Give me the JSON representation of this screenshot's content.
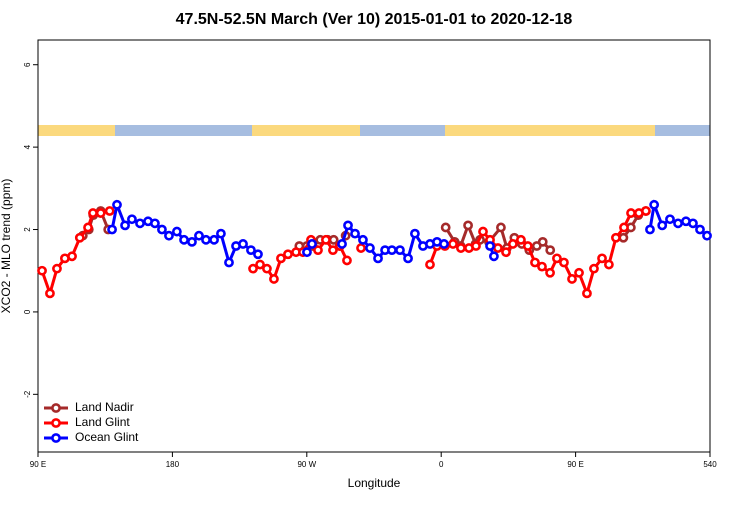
{
  "chart_data": {
    "type": "line",
    "title": "47.5N-52.5N March (Ver 10)   2015-01-01 to 2020-12-18",
    "x_label": "Longitude",
    "y_label": "XCO2 - MLO trend (ppm)",
    "xlim": [
      90,
      540
    ],
    "xticks": [
      {
        "value": 90,
        "label": "90 E"
      },
      180,
      {
        "value": 270,
        "label": "90 W"
      },
      {
        "value": 360,
        "label": "0"
      },
      {
        "value": 450,
        "label": "90 E"
      },
      540
    ],
    "ylim": [
      -3.4,
      6.6
    ],
    "yticks": [
      -2,
      0,
      2,
      4,
      6
    ],
    "legend": "bottom-left",
    "series": [
      {
        "name": "Land Nadir",
        "color": "#a52a2a",
        "x": [
          120,
          124,
          127,
          132,
          137,
          null,
          265,
          270,
          274,
          279,
          284,
          288,
          292,
          296,
          null,
          363,
          369,
          373,
          378,
          383,
          386,
          392,
          400,
          404,
          409,
          414,
          419,
          424,
          428,
          433,
          null,
          482,
          487,
          492,
          497
        ],
        "values": [
          1.85,
          2.0,
          2.35,
          2.45,
          2.0,
          null,
          1.6,
          1.6,
          1.6,
          1.75,
          1.75,
          1.75,
          1.6,
          1.85,
          null,
          2.05,
          1.7,
          1.6,
          2.1,
          1.65,
          1.75,
          1.7,
          2.05,
          1.55,
          1.8,
          1.65,
          1.5,
          1.6,
          1.7,
          1.5,
          null,
          1.8,
          2.05,
          2.35,
          2.45
        ]
      },
      {
        "name": "Land Glint",
        "color": "#ff0000",
        "x": [
          92.7,
          98,
          102.7,
          108,
          112.8,
          118,
          123.5,
          126.8,
          132,
          138,
          null,
          234,
          238.7,
          243.3,
          248,
          252.7,
          257.4,
          262.8,
          267.4,
          272.8,
          277.5,
          282.8,
          287.5,
          292.2,
          296.9,
          null,
          306.3,
          null,
          352.5,
          357.2,
          362.5,
          367.9,
          373.2,
          378.6,
          383.3,
          388,
          392.7,
          398,
          403.4,
          408,
          413.4,
          418,
          422.8,
          427.5,
          432.9,
          437.5,
          442.2,
          447.6,
          452.3,
          457.6,
          462.3,
          467.7,
          472.3,
          477,
          482.4,
          487.1,
          492.4,
          497.1
        ],
        "values": [
          1.0,
          0.45,
          1.05,
          1.3,
          1.35,
          1.8,
          2.05,
          2.4,
          2.4,
          2.45,
          null,
          1.05,
          1.15,
          1.05,
          0.8,
          1.3,
          1.4,
          1.45,
          1.45,
          1.75,
          1.5,
          1.75,
          1.5,
          1.6,
          1.25,
          null,
          1.55,
          null,
          1.15,
          1.6,
          1.6,
          1.65,
          1.55,
          1.55,
          1.6,
          1.95,
          1.75,
          1.55,
          1.45,
          1.65,
          1.75,
          1.6,
          1.2,
          1.1,
          0.95,
          1.3,
          1.2,
          0.8,
          0.95,
          0.45,
          1.05,
          1.3,
          1.15,
          1.8,
          2.05,
          2.4,
          2.4,
          2.45
        ]
      },
      {
        "name": "Ocean Glint",
        "color": "#0000ff",
        "x": [
          139.6,
          142.9,
          148.3,
          152.9,
          158.3,
          163.7,
          168.3,
          173,
          177.7,
          183,
          187.8,
          193.1,
          197.8,
          202.5,
          207.9,
          212.5,
          217.9,
          222.6,
          227.3,
          232.6,
          237.3,
          null,
          270.1,
          273.5,
          null,
          293.6,
          297.6,
          302.3,
          307.6,
          312.3,
          317.7,
          322.4,
          327,
          332.4,
          337.8,
          342.4,
          347.8,
          352.5,
          357.2,
          361.9,
          null,
          392.7,
          395.3,
          null,
          499.8,
          502.6,
          508,
          513.2,
          518.6,
          523.9,
          528.6,
          533.3,
          538
        ],
        "values": [
          2.0,
          2.6,
          2.1,
          2.25,
          2.15,
          2.2,
          2.15,
          2.0,
          1.85,
          1.95,
          1.75,
          1.7,
          1.85,
          1.75,
          1.75,
          1.9,
          1.2,
          1.6,
          1.65,
          1.5,
          1.4,
          null,
          1.45,
          1.65,
          null,
          1.65,
          2.1,
          1.9,
          1.75,
          1.55,
          1.3,
          1.5,
          1.5,
          1.5,
          1.3,
          1.9,
          1.6,
          1.65,
          1.7,
          1.65,
          null,
          1.6,
          1.35,
          null,
          2.0,
          2.6,
          2.1,
          2.25,
          2.15,
          2.2,
          2.15,
          2.0,
          1.85
        ]
      }
    ]
  }
}
